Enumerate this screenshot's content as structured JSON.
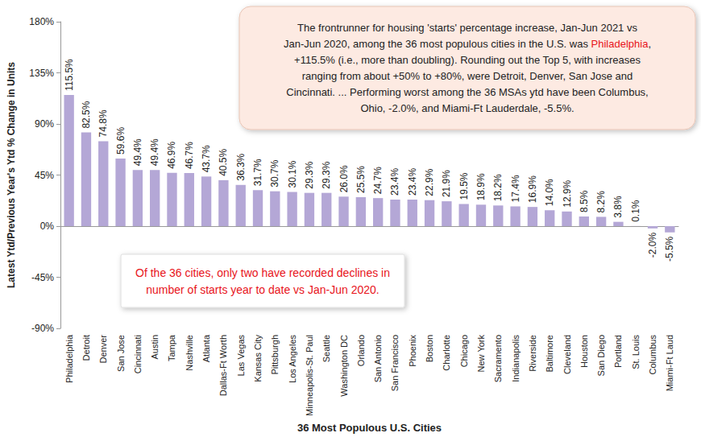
{
  "chart_data": {
    "type": "bar",
    "color": "#b4a7d6",
    "x_label": "36 Most Populous U.S. Cities",
    "y_label": "Latest Ytd/Previous Year's Ytd % Change in Units",
    "categories": [
      "Philadelphia",
      "Detroit",
      "Denver",
      "San Jose",
      "Cincinnati",
      "Austin",
      "Tampa",
      "Nashville",
      "Atlanta",
      "Dallas-Ft Worth",
      "Las Vegas",
      "Kansas City",
      "Pittsburgh",
      "Los Angeles",
      "Minneapolis-St. Paul",
      "Seattle",
      "Washington DC",
      "Orlando",
      "San Antonio",
      "San Francisco",
      "Phoenix",
      "Boston",
      "Charlotte",
      "Chicago",
      "New York",
      "Sacramento",
      "Indianapolis",
      "Riverside",
      "Baltimore",
      "Cleveland",
      "Houston",
      "San Diego",
      "Portland",
      "St. Louis",
      "Columbus",
      "Miami-Ft Laud"
    ],
    "values": [
      115.5,
      82.5,
      74.8,
      59.6,
      49.4,
      49.4,
      46.9,
      46.7,
      43.7,
      40.5,
      36.3,
      31.7,
      30.7,
      30.1,
      29.3,
      29.3,
      26.0,
      25.5,
      24.7,
      23.4,
      23.4,
      22.9,
      21.9,
      19.5,
      18.9,
      18.2,
      17.4,
      16.9,
      14.0,
      12.9,
      8.5,
      8.2,
      3.8,
      0.1,
      -2.0,
      -5.5
    ],
    "value_labels": [
      "115.5%",
      "82.5%",
      "74.8%",
      "59.6%",
      "49.4%",
      "49.4%",
      "46.9%",
      "46.7%",
      "43.7%",
      "40.5%",
      "36.3%",
      "31.7%",
      "30.7%",
      "30.1%",
      "29.3%",
      "29.3%",
      "26.0%",
      "25.5%",
      "24.7%",
      "23.4%",
      "23.4%",
      "22.9%",
      "21.9%",
      "19.5%",
      "18.9%",
      "18.2%",
      "17.4%",
      "16.9%",
      "14.0%",
      "12.9%",
      "8.5%",
      "8.2%",
      "3.8%",
      "0.1%",
      "-2.0%",
      "-5.5%"
    ],
    "data_labels": true,
    "grid": false,
    "ylim": [
      -90,
      180
    ],
    "yticks": [
      {
        "value": -90,
        "label": "-90%"
      },
      {
        "value": -45,
        "label": "-45%"
      },
      {
        "value": 0,
        "label": "0%"
      },
      {
        "value": 45,
        "label": "45%"
      },
      {
        "value": 90,
        "label": "90%"
      },
      {
        "value": 135,
        "label": "135%"
      },
      {
        "value": 180,
        "label": "180%"
      }
    ],
    "annotations": [
      {
        "runs": [
          {
            "text": "The frontrunner for housing 'starts' percentage increase, Jan-Jun 2021 vs\nJan-Jun 2020, among the 36 most populous cities in the U.S. was ",
            "color": "#222222"
          },
          {
            "text": "Philadelphia",
            "color": "#e8141b"
          },
          {
            "text": ",\n+115.5% (i.e., more than doubling). Rounding out the Top 5, with increases\nranging from about +50% to +80%, were Detroit, Denver, San Jose and\nCincinnati. ... Performing worst among the 36 MSAs ytd have been Columbus,\nOhio, -2.0%, and Miami-Ft Lauderdale, -5.5%.",
            "color": "#222222"
          }
        ]
      },
      {
        "runs": [
          {
            "text": "Of the 36 cities, only two have recorded declines in\nnumber of starts year to date vs Jan-Jun 2020.",
            "color": "#e8141b"
          }
        ]
      }
    ]
  }
}
